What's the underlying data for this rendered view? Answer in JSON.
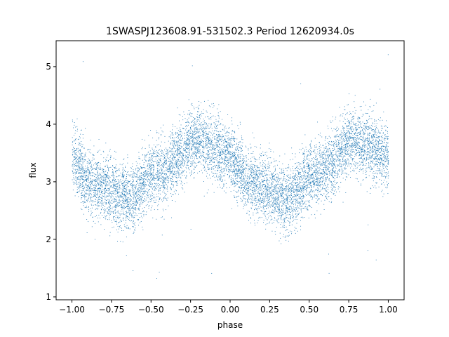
{
  "chart_data": {
    "type": "scatter",
    "title": "1SWASPJ123608.91-531502.3 Period 12620934.0s",
    "xlabel": "phase",
    "ylabel": "flux",
    "xlim": [
      -1.1,
      1.1
    ],
    "ylim": [
      0.95,
      5.45
    ],
    "xticks": [
      -1.0,
      -0.75,
      -0.5,
      -0.25,
      0.0,
      0.25,
      0.5,
      0.75,
      1.0
    ],
    "xtick_labels": [
      "−1.00",
      "−0.75",
      "−0.50",
      "−0.25",
      "0.00",
      "0.25",
      "0.50",
      "0.75",
      "1.00"
    ],
    "yticks": [
      1,
      2,
      3,
      4,
      5
    ],
    "ytick_labels": [
      "1",
      "2",
      "3",
      "4",
      "5"
    ],
    "grid": false,
    "marker_color": "#1f77b4",
    "series": [
      {
        "phase_profile": [
          [
            0.0,
            3.45
          ],
          [
            0.05,
            3.25
          ],
          [
            0.1,
            3.0
          ],
          [
            0.15,
            2.95
          ],
          [
            0.2,
            2.9
          ],
          [
            0.25,
            2.85
          ],
          [
            0.3,
            2.75
          ],
          [
            0.35,
            2.7
          ],
          [
            0.4,
            2.8
          ],
          [
            0.45,
            2.95
          ],
          [
            0.5,
            3.1
          ],
          [
            0.55,
            3.15
          ],
          [
            0.6,
            3.2
          ],
          [
            0.65,
            3.35
          ],
          [
            0.7,
            3.55
          ],
          [
            0.75,
            3.7
          ],
          [
            0.8,
            3.7
          ],
          [
            0.85,
            3.65
          ],
          [
            0.9,
            3.6
          ],
          [
            0.95,
            3.5
          ],
          [
            1.0,
            3.45
          ]
        ],
        "scatter_sd": 0.28,
        "n_points": 9000,
        "outlier_range": [
          1.15,
          5.25
        ]
      }
    ]
  }
}
